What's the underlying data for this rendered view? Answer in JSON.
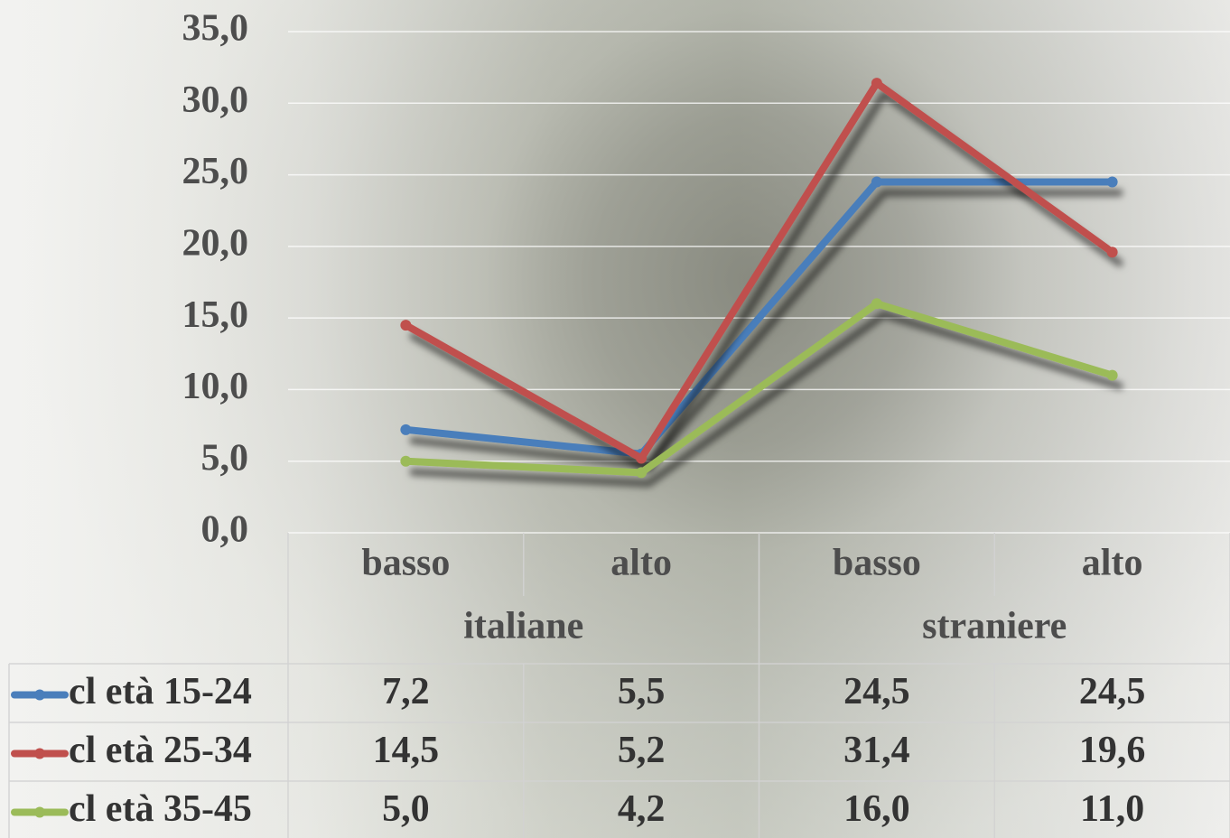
{
  "chart_data": {
    "type": "line",
    "category_groups": [
      {
        "name": "italiane",
        "categories": [
          "basso",
          "alto"
        ]
      },
      {
        "name": "straniere",
        "categories": [
          "basso",
          "alto"
        ]
      }
    ],
    "series": [
      {
        "name": "cl età 15-24",
        "color": "#4a7ebb",
        "values": [
          7.2,
          5.5,
          24.5,
          24.5
        ],
        "value_labels": [
          "7,2",
          "5,5",
          "24,5",
          "24,5"
        ]
      },
      {
        "name": "cl età 25-34",
        "color": "#c0504d",
        "values": [
          14.5,
          5.2,
          31.4,
          19.6
        ],
        "value_labels": [
          "14,5",
          "5,2",
          "31,4",
          "19,6"
        ]
      },
      {
        "name": "cl età 35-45",
        "color": "#9bbb59",
        "values": [
          5.0,
          4.2,
          16.0,
          11.0
        ],
        "value_labels": [
          "5,0",
          "4,2",
          "16,0",
          "11,0"
        ]
      }
    ],
    "ylim": [
      0,
      35
    ],
    "yticks": [
      {
        "value": 0,
        "label": "0,0"
      },
      {
        "value": 5,
        "label": "5,0"
      },
      {
        "value": 10,
        "label": "10,0"
      },
      {
        "value": 15,
        "label": "15,0"
      },
      {
        "value": 20,
        "label": "20,0"
      },
      {
        "value": 25,
        "label": "25,0"
      },
      {
        "value": 30,
        "label": "30,0"
      },
      {
        "value": 35,
        "label": "35,0"
      }
    ],
    "grid": true,
    "data_table": true
  }
}
